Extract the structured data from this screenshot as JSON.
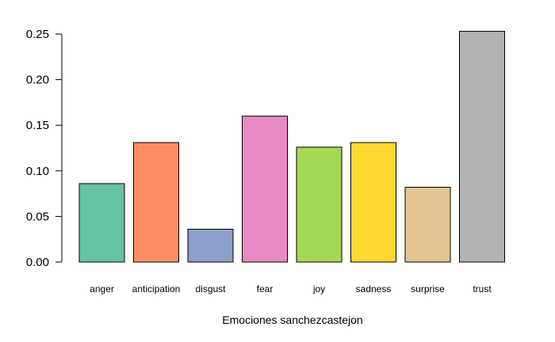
{
  "chart_data": {
    "type": "bar",
    "title": "",
    "xlabel": "Emociones sanchezcastejon",
    "ylabel": "",
    "ylim": [
      0,
      0.25
    ],
    "yticks": [
      "0.00",
      "0.05",
      "0.10",
      "0.15",
      "0.20",
      "0.25"
    ],
    "categories": [
      "anger",
      "anticipation",
      "disgust",
      "fear",
      "joy",
      "sadness",
      "surprise",
      "trust"
    ],
    "values": [
      0.086,
      0.131,
      0.036,
      0.16,
      0.126,
      0.131,
      0.082,
      0.253
    ],
    "colors": [
      "#66C2A5",
      "#FC8D62",
      "#8DA0CB",
      "#E78AC3",
      "#A6D854",
      "#FFD92F",
      "#E5C494",
      "#B3B3B3"
    ],
    "grid": false,
    "legend": "none"
  }
}
